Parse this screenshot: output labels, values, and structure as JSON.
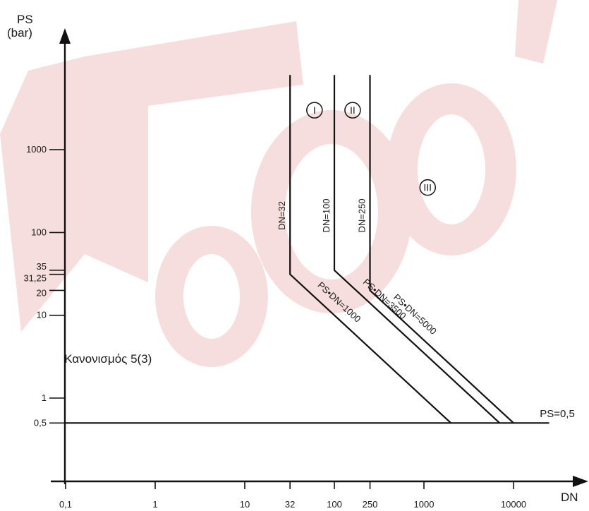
{
  "chart_data": {
    "type": "line",
    "x_scale": "log",
    "y_scale": "log",
    "xlabel": "DN",
    "ylabel": "PS",
    "ylabel_unit": "(bar)",
    "x_ticks": [
      {
        "value": 0.1,
        "label": "0,1"
      },
      {
        "value": 1,
        "label": "1"
      },
      {
        "value": 10,
        "label": "10"
      },
      {
        "value": 32,
        "label": "32"
      },
      {
        "value": 100,
        "label": "100"
      },
      {
        "value": 250,
        "label": "250"
      },
      {
        "value": 1000,
        "label": "1000"
      },
      {
        "value": 10000,
        "label": "10000"
      }
    ],
    "y_ticks": [
      {
        "value": 0.5,
        "label": "0,5"
      },
      {
        "value": 1,
        "label": "1"
      },
      {
        "value": 10,
        "label": "10"
      },
      {
        "value": 20,
        "label": "20"
      },
      {
        "value": 31.25,
        "label": "31,25"
      },
      {
        "value": 35,
        "label": "35"
      },
      {
        "value": 100,
        "label": "100"
      },
      {
        "value": 1000,
        "label": "1000"
      }
    ],
    "series": [
      {
        "name": "DN=32",
        "diag_label": "PS•DN=1000",
        "points": [
          [
            32,
            8000
          ],
          [
            32,
            31.25
          ],
          [
            2000,
            0.5
          ]
        ]
      },
      {
        "name": "DN=100",
        "diag_label": "PS•DN=3500",
        "points": [
          [
            100,
            8000
          ],
          [
            100,
            35
          ],
          [
            7000,
            0.5
          ]
        ]
      },
      {
        "name": "DN=250",
        "diag_label": "PS•DN=5000",
        "points": [
          [
            250,
            8000
          ],
          [
            250,
            20
          ],
          [
            10000,
            0.5
          ]
        ]
      },
      {
        "name": "PS=0,5",
        "points": [
          [
            0.1,
            0.5
          ],
          [
            25000,
            0.5
          ]
        ]
      }
    ],
    "regions": [
      {
        "label": "I",
        "x": 60,
        "y": 3000
      },
      {
        "label": "II",
        "x": 160,
        "y": 3000
      },
      {
        "label": "III",
        "x": 1100,
        "y": 350
      }
    ],
    "region_text": {
      "label": "Κανονισμός 5(3)",
      "x": 0.2,
      "y": 3
    }
  }
}
